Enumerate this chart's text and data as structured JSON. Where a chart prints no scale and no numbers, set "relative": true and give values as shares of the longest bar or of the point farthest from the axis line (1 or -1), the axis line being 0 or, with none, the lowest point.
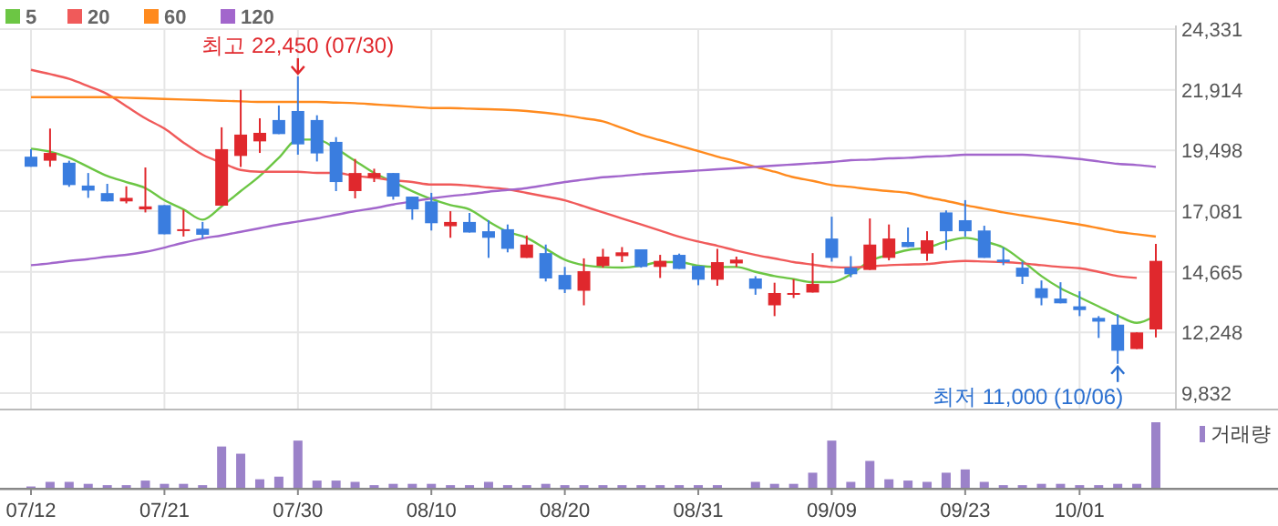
{
  "chart_data": [
    {
      "type": "candlestick",
      "categories": [
        "07/12",
        null,
        null,
        null,
        null,
        null,
        null,
        "07/21",
        null,
        null,
        null,
        null,
        null,
        null,
        "07/30",
        null,
        null,
        null,
        null,
        null,
        null,
        "08/10",
        null,
        null,
        null,
        null,
        null,
        null,
        "08/20",
        null,
        null,
        null,
        null,
        null,
        null,
        "08/31",
        null,
        null,
        null,
        null,
        null,
        null,
        "09/09",
        null,
        null,
        null,
        null,
        null,
        null,
        "09/23",
        null,
        null,
        null,
        null,
        null,
        "10/01",
        null,
        null,
        null,
        null
      ],
      "ohlc": [
        [
          19250,
          19550,
          18850,
          18850
        ],
        [
          19090,
          20370,
          18850,
          19400
        ],
        [
          19010,
          19090,
          18050,
          18120
        ],
        [
          18100,
          18600,
          17610,
          17900
        ],
        [
          17800,
          18170,
          17470,
          17470
        ],
        [
          17470,
          18070,
          17390,
          17610
        ],
        [
          17150,
          18820,
          17030,
          17270
        ],
        [
          17320,
          17320,
          16160,
          16160
        ],
        [
          16310,
          17130,
          16070,
          16360
        ],
        [
          16380,
          16650,
          15990,
          16140
        ],
        [
          17300,
          20420,
          17300,
          19550
        ],
        [
          19280,
          21910,
          18840,
          20130
        ],
        [
          19860,
          20780,
          19400,
          20200
        ],
        [
          20710,
          21290,
          20150,
          20150
        ],
        [
          21070,
          22450,
          19330,
          19740
        ],
        [
          20710,
          20900,
          19060,
          19380
        ],
        [
          19840,
          20030,
          17880,
          18240
        ],
        [
          17880,
          19160,
          17590,
          18600
        ],
        [
          18410,
          18770,
          18240,
          18600
        ],
        [
          18600,
          18600,
          17540,
          17660
        ],
        [
          17660,
          17660,
          16740,
          17150
        ],
        [
          17470,
          17810,
          16310,
          16600
        ],
        [
          16480,
          17080,
          16020,
          16650
        ],
        [
          16650,
          17010,
          16230,
          16230
        ],
        [
          16280,
          16720,
          15220,
          16020
        ],
        [
          16360,
          16550,
          15440,
          15580
        ],
        [
          15220,
          16110,
          15220,
          15750
        ],
        [
          15410,
          15750,
          14280,
          14400
        ],
        [
          14540,
          14860,
          13820,
          13960
        ],
        [
          13910,
          15200,
          13330,
          14690
        ],
        [
          14900,
          15580,
          14830,
          15270
        ],
        [
          15290,
          15650,
          15050,
          15440
        ],
        [
          15560,
          15560,
          14830,
          14860
        ],
        [
          14860,
          15340,
          14420,
          15100
        ],
        [
          15340,
          15390,
          14780,
          14780
        ],
        [
          14900,
          14900,
          14130,
          14350
        ],
        [
          14350,
          15580,
          14110,
          15050
        ],
        [
          15000,
          15270,
          14860,
          15150
        ],
        [
          14400,
          14490,
          13750,
          13990
        ],
        [
          13330,
          14230,
          12900,
          13820
        ],
        [
          13750,
          14370,
          13620,
          13820
        ],
        [
          13840,
          15410,
          13840,
          14180
        ],
        [
          15990,
          16860,
          15070,
          15220
        ],
        [
          14830,
          15290,
          14450,
          14570
        ],
        [
          14740,
          16790,
          14740,
          15750
        ],
        [
          15220,
          16550,
          15120,
          15990
        ],
        [
          15850,
          16430,
          15650,
          15650
        ],
        [
          15390,
          16280,
          15100,
          15920
        ],
        [
          17030,
          17110,
          15530,
          16280
        ],
        [
          16720,
          17520,
          16070,
          16280
        ],
        [
          16310,
          16500,
          15220,
          15220
        ],
        [
          15150,
          15630,
          14930,
          15050
        ],
        [
          14830,
          15070,
          14180,
          14470
        ],
        [
          14010,
          14320,
          13330,
          13620
        ],
        [
          13600,
          14250,
          13410,
          13410
        ],
        [
          13290,
          13890,
          12900,
          13140
        ],
        [
          12830,
          12900,
          12030,
          12680
        ],
        [
          12560,
          12970,
          11000,
          11520
        ],
        [
          11590,
          12250,
          11590,
          12250
        ],
        [
          12370,
          15780,
          12050,
          15100
        ]
      ],
      "series": [
        {
          "type": "line",
          "name": "5",
          "color": "#6cc644",
          "values": [
            19569,
            19448,
            19207,
            18844,
            18482,
            18240,
            17998,
            17515,
            17152,
            16741,
            17273,
            17877,
            18482,
            19207,
            19932,
            19932,
            19569,
            19086,
            18603,
            18240,
            17877,
            17563,
            17322,
            17152,
            16669,
            16258,
            16016,
            15581,
            15146,
            14929,
            14856,
            14832,
            14905,
            15050,
            15050,
            14905,
            14856,
            14856,
            14663,
            14494,
            14373,
            14252,
            14252,
            14566,
            15098,
            15340,
            15533,
            15630,
            15871,
            16016,
            15871,
            15630,
            15098,
            14494,
            14010,
            13648,
            13285,
            12923,
            12633,
            12923
          ]
        },
        {
          "type": "line",
          "name": "20",
          "color": "#f05a5a",
          "values": [
            22711,
            22542,
            22349,
            22059,
            21745,
            21261,
            20778,
            20367,
            19811,
            19328,
            19013,
            18723,
            18651,
            18651,
            18651,
            18603,
            18603,
            18482,
            18409,
            18313,
            18240,
            18143,
            18143,
            18095,
            18022,
            17950,
            17805,
            17660,
            17515,
            17273,
            17031,
            16790,
            16548,
            16306,
            16065,
            15871,
            15702,
            15509,
            15340,
            15195,
            15050,
            14953,
            14856,
            14832,
            14880,
            14929,
            14953,
            14977,
            15050,
            15098,
            15074,
            15050,
            15001,
            14929,
            14856,
            14808,
            14663,
            14494,
            14421,
            null
          ]
        },
        {
          "type": "line",
          "name": "60",
          "color": "#ff8a1e",
          "values": [
            21624,
            21624,
            21624,
            21624,
            21624,
            21600,
            21575,
            21551,
            21527,
            21503,
            21479,
            21455,
            21430,
            21430,
            21430,
            21430,
            21406,
            21382,
            21334,
            21285,
            21237,
            21189,
            21189,
            21165,
            21140,
            21116,
            21068,
            20995,
            20899,
            20778,
            20657,
            20391,
            20125,
            19908,
            19690,
            19473,
            19255,
            19062,
            18844,
            18651,
            18433,
            18288,
            18119,
            18047,
            17950,
            17877,
            17805,
            17636,
            17491,
            17322,
            17177,
            17031,
            16911,
            16790,
            16669,
            16548,
            16403,
            16258,
            16161,
            16065
          ]
        },
        {
          "type": "line",
          "name": "120",
          "color": "#a266cc",
          "values": [
            14929,
            15001,
            15098,
            15170,
            15267,
            15340,
            15460,
            15630,
            15823,
            15992,
            16113,
            16258,
            16403,
            16548,
            16669,
            16790,
            16935,
            17080,
            17201,
            17346,
            17467,
            17587,
            17684,
            17757,
            17853,
            17926,
            17998,
            18119,
            18240,
            18337,
            18433,
            18482,
            18554,
            18603,
            18651,
            18699,
            18748,
            18796,
            18844,
            18893,
            18941,
            18989,
            19038,
            19110,
            19134,
            19183,
            19207,
            19255,
            19279,
            19328,
            19328,
            19328,
            19328,
            19279,
            19231,
            19158,
            19062,
            18965,
            18917,
            18844
          ]
        }
      ],
      "ylim": [
        9180,
        24331
      ],
      "yticks": [
        {
          "value": 9832,
          "label": "9,832"
        },
        {
          "value": 12248,
          "label": "12,248"
        },
        {
          "value": 14665,
          "label": "14,665"
        },
        {
          "value": 17081,
          "label": "17,081"
        },
        {
          "value": 19498,
          "label": "19,498"
        },
        {
          "value": 21914,
          "label": "21,914"
        },
        {
          "value": 24331,
          "label": "24,331"
        }
      ],
      "grid": true,
      "legend": "top left",
      "tick_labels": "y",
      "annotations": [
        {
          "text": "최고 22,450 (07/30)",
          "x": "07/30",
          "y": 22450
        },
        "최저 11,000 (10/06)"
      ]
    },
    {
      "type": "bar",
      "relative": true,
      "legend": "top right",
      "tick_labels": "x",
      "categories": [
        "07/12",
        null,
        null,
        null,
        null,
        null,
        null,
        "07/21",
        null,
        null,
        null,
        null,
        null,
        null,
        "07/30",
        null,
        null,
        null,
        null,
        null,
        null,
        "08/10",
        null,
        null,
        null,
        null,
        null,
        null,
        "08/20",
        null,
        null,
        null,
        null,
        null,
        null,
        "08/31",
        null,
        null,
        null,
        null,
        null,
        null,
        "09/09",
        null,
        null,
        null,
        null,
        null,
        null,
        "09/23",
        null,
        null,
        null,
        null,
        null,
        "10/01",
        null,
        null,
        null,
        null
      ],
      "series": [
        {
          "name": "거래량",
          "color": "#9b82c9",
          "values": [
            0.02,
            0.09,
            0.09,
            0.06,
            0.04,
            0.04,
            0.11,
            0.06,
            0.06,
            0.04,
            0.63,
            0.52,
            0.13,
            0.17,
            0.72,
            0.11,
            0.11,
            0.09,
            0.04,
            0.06,
            0.06,
            0.06,
            0.04,
            0.04,
            0.09,
            0.04,
            0.04,
            0.06,
            0.04,
            0.04,
            0.04,
            0.04,
            0.04,
            0.04,
            0.04,
            0.04,
            0.04,
            null,
            0.09,
            0.06,
            0.06,
            0.23,
            0.72,
            0.09,
            0.41,
            0.13,
            0.11,
            0.09,
            0.23,
            0.28,
            0.09,
            0.04,
            0.04,
            0.06,
            0.06,
            0.04,
            0.04,
            0.06,
            0.06,
            1
          ]
        }
      ]
    }
  ]
}
